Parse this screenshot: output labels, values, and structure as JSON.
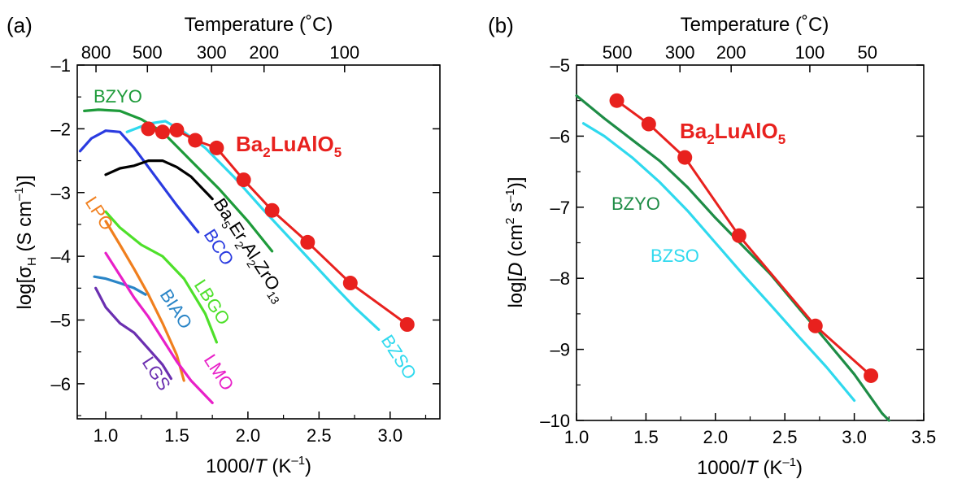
{
  "panels": [
    {
      "panel_label": "(a)",
      "top_axis_title": "Temperature (˚C)",
      "top_ticks": [
        {
          "label": "800",
          "celsius": 800
        },
        {
          "label": "500",
          "celsius": 500
        },
        {
          "label": "300",
          "celsius": 300
        },
        {
          "label": "200",
          "celsius": 200
        },
        {
          "label": "100",
          "celsius": 100
        }
      ],
      "x_axis_title_pre": "1000/",
      "x_axis_title_italic": "T",
      "x_axis_title_post": " (K",
      "x_axis_title_sup": "–1",
      "x_axis_title_end": ")",
      "y_axis_title_pre": "log[σ",
      "y_axis_title_sub": "H",
      "y_axis_title_mid": "  (S cm",
      "y_axis_title_sup": "–1",
      "y_axis_title_end": ")]",
      "x_ticks": [
        {
          "value": 1.0,
          "label": "1.0"
        },
        {
          "value": 1.5,
          "label": "1.5"
        },
        {
          "value": 2.0,
          "label": "2.0"
        },
        {
          "value": 2.5,
          "label": "2.5"
        },
        {
          "value": 3.0,
          "label": "3.0"
        }
      ],
      "y_ticks": [
        {
          "value": -1,
          "label": "–1"
        },
        {
          "value": -2,
          "label": "–2"
        },
        {
          "value": -3,
          "label": "–3"
        },
        {
          "value": -4,
          "label": "–4"
        },
        {
          "value": -5,
          "label": "–5"
        },
        {
          "value": -6,
          "label": "–6"
        }
      ]
    },
    {
      "panel_label": "(b)",
      "top_axis_title": "Temperature (˚C)",
      "top_ticks": [
        {
          "label": "500",
          "celsius": 500
        },
        {
          "label": "300",
          "celsius": 300
        },
        {
          "label": "200",
          "celsius": 200
        },
        {
          "label": "100",
          "celsius": 100
        },
        {
          "label": "50",
          "celsius": 50
        }
      ],
      "x_axis_title_pre": "1000/",
      "x_axis_title_italic": "T",
      "x_axis_title_post": " (K",
      "x_axis_title_sup": "–1",
      "x_axis_title_end": ")",
      "y_axis_title_pre": "log[",
      "y_axis_title_italic": "D",
      "y_axis_title_mid": " (cm",
      "y_axis_title_sup1": "2",
      "y_axis_title_mid2": " s",
      "y_axis_title_sup2": "–1",
      "y_axis_title_end": ")]",
      "x_ticks": [
        {
          "value": 1.0,
          "label": "1.0"
        },
        {
          "value": 1.5,
          "label": "1.5"
        },
        {
          "value": 2.0,
          "label": "2.0"
        },
        {
          "value": 2.5,
          "label": "2.5"
        },
        {
          "value": 3.0,
          "label": "3.0"
        },
        {
          "value": 3.5,
          "label": "3.5"
        }
      ],
      "y_ticks": [
        {
          "value": -5,
          "label": "–5"
        },
        {
          "value": -6,
          "label": "–6"
        },
        {
          "value": -7,
          "label": "–7"
        },
        {
          "value": -8,
          "label": "–8"
        },
        {
          "value": -9,
          "label": "–9"
        },
        {
          "value": -10,
          "label": "–10"
        }
      ]
    }
  ],
  "chart_data": [
    {
      "type": "line",
      "panel": "(a)",
      "xlabel": "1000/T (K–1)",
      "ylabel": "log[σH (S cm–1)]",
      "xlim": [
        0.8,
        3.35
      ],
      "ylim": [
        -6.55,
        -1
      ],
      "top_axis": "Temperature (˚C)",
      "series": [
        {
          "name": "Ba2LuAlO5",
          "color": "#e8211e",
          "markers": true,
          "x": [
            1.3,
            1.4,
            1.5,
            1.63,
            1.78,
            1.97,
            2.17,
            2.42,
            2.72,
            3.12
          ],
          "y": [
            -2.0,
            -2.05,
            -2.02,
            -2.18,
            -2.3,
            -2.8,
            -3.28,
            -3.78,
            -4.42,
            -5.07
          ]
        },
        {
          "name": "BZSO",
          "color": "#2fd9ee",
          "x": [
            1.15,
            1.3,
            1.42,
            1.55,
            1.7,
            1.9,
            2.1,
            2.35,
            2.6,
            2.75,
            2.92
          ],
          "y": [
            -2.05,
            -1.92,
            -1.88,
            -2.05,
            -2.3,
            -2.75,
            -3.25,
            -3.85,
            -4.45,
            -4.8,
            -5.15
          ]
        },
        {
          "name": "BZYO",
          "color": "#1e9b3a",
          "x": [
            0.85,
            0.95,
            1.1,
            1.25,
            1.4,
            1.6,
            1.8,
            2.0,
            2.17
          ],
          "y": [
            -1.72,
            -1.7,
            -1.72,
            -1.85,
            -2.05,
            -2.5,
            -2.95,
            -3.45,
            -3.92
          ]
        },
        {
          "name": "BCO",
          "color": "#2a3be0",
          "x": [
            0.82,
            0.9,
            1.0,
            1.1,
            1.2,
            1.35,
            1.5,
            1.65
          ],
          "y": [
            -2.35,
            -2.15,
            -2.03,
            -2.05,
            -2.3,
            -2.75,
            -3.2,
            -3.62
          ]
        },
        {
          "name": "Ba5Er2Al2ZrO13",
          "color": "#000000",
          "x": [
            1.0,
            1.1,
            1.2,
            1.3,
            1.4,
            1.5,
            1.6,
            1.75
          ],
          "y": [
            -2.72,
            -2.62,
            -2.58,
            -2.5,
            -2.5,
            -2.6,
            -2.75,
            -3.1
          ]
        },
        {
          "name": "LBGO",
          "color": "#4ee02a",
          "x": [
            1.0,
            1.1,
            1.25,
            1.4,
            1.55,
            1.7,
            1.78
          ],
          "y": [
            -3.3,
            -3.55,
            -3.82,
            -4.0,
            -4.35,
            -4.9,
            -5.35
          ]
        },
        {
          "name": "LPO",
          "color": "#f07f1e",
          "x": [
            1.0,
            1.1,
            1.2,
            1.3,
            1.4,
            1.5,
            1.55
          ],
          "y": [
            -3.45,
            -3.82,
            -4.2,
            -4.6,
            -5.05,
            -5.55,
            -5.95
          ]
        },
        {
          "name": "BIAO",
          "color": "#2a85c7",
          "x": [
            0.92,
            1.0,
            1.1,
            1.2,
            1.28
          ],
          "y": [
            -4.32,
            -4.35,
            -4.42,
            -4.5,
            -4.6
          ]
        },
        {
          "name": "LMO",
          "color": "#e820c8",
          "x": [
            1.0,
            1.1,
            1.2,
            1.3,
            1.4,
            1.5,
            1.6,
            1.75
          ],
          "y": [
            -3.95,
            -4.3,
            -4.65,
            -4.95,
            -5.3,
            -5.65,
            -5.95,
            -6.3
          ]
        },
        {
          "name": "LGS",
          "color": "#6b2fb0",
          "x": [
            0.93,
            1.0,
            1.1,
            1.2,
            1.3,
            1.4,
            1.46
          ],
          "y": [
            -4.5,
            -4.8,
            -5.05,
            -5.2,
            -5.45,
            -5.7,
            -5.92
          ]
        }
      ]
    },
    {
      "type": "line",
      "panel": "(b)",
      "xlabel": "1000/T (K–1)",
      "ylabel": "log[D (cm2 s–1)]",
      "xlim": [
        1.0,
        3.5
      ],
      "ylim": [
        -10,
        -5
      ],
      "top_axis": "Temperature (˚C)",
      "series": [
        {
          "name": "Ba2LuAlO5",
          "color": "#e8211e",
          "markers": true,
          "x": [
            1.29,
            1.52,
            1.78,
            2.17,
            2.72,
            3.12
          ],
          "y": [
            -5.5,
            -5.83,
            -6.3,
            -7.4,
            -8.67,
            -9.37
          ]
        },
        {
          "name": "BZYO",
          "color": "#1e8c46",
          "x": [
            1.0,
            1.2,
            1.4,
            1.6,
            1.8,
            2.0,
            2.2,
            2.4,
            2.6,
            2.8,
            3.0,
            3.2,
            3.25
          ],
          "y": [
            -5.43,
            -5.75,
            -6.05,
            -6.35,
            -6.72,
            -7.15,
            -7.55,
            -7.95,
            -8.42,
            -8.88,
            -9.35,
            -9.9,
            -10.0
          ]
        },
        {
          "name": "BZSO",
          "color": "#2fd9ee",
          "x": [
            1.05,
            1.2,
            1.4,
            1.6,
            1.8,
            2.0,
            2.2,
            2.4,
            2.6,
            2.8,
            3.0
          ],
          "y": [
            -5.82,
            -6.0,
            -6.3,
            -6.65,
            -7.05,
            -7.5,
            -7.95,
            -8.38,
            -8.82,
            -9.25,
            -9.72
          ]
        }
      ]
    }
  ],
  "labels_a": [
    {
      "key": "BZYO",
      "text": "BZYO",
      "color": "#1e9b3a"
    },
    {
      "key": "BZSO",
      "text": "BZSO",
      "color": "#2fd9ee"
    },
    {
      "key": "BCO",
      "text": "BCO",
      "color": "#2a3be0"
    },
    {
      "key": "LBGO",
      "text": "LBGO",
      "color": "#4ee02a"
    },
    {
      "key": "LPO",
      "text": "LPO",
      "color": "#f07f1e"
    },
    {
      "key": "BIAO",
      "text": "BIAO",
      "color": "#2a85c7"
    },
    {
      "key": "LMO",
      "text": "LMO",
      "color": "#e820c8"
    },
    {
      "key": "LGS",
      "text": "LGS",
      "color": "#6b2fb0"
    }
  ],
  "ba2_label": {
    "base": "Ba",
    "s1": "2",
    "mid": "LuAlO",
    "s2": "5",
    "color": "#e8211e"
  },
  "ba5_label": {
    "a": "Ba",
    "s1": "5",
    "b": "Er",
    "s2": "2",
    "c": "Al",
    "s3": "2",
    "d": "ZrO",
    "s4": "13"
  },
  "labels_b": [
    {
      "key": "BZYO",
      "text": "BZYO",
      "color": "#1e8c46"
    },
    {
      "key": "BZSO",
      "text": "BZSO",
      "color": "#2fd9ee"
    }
  ]
}
